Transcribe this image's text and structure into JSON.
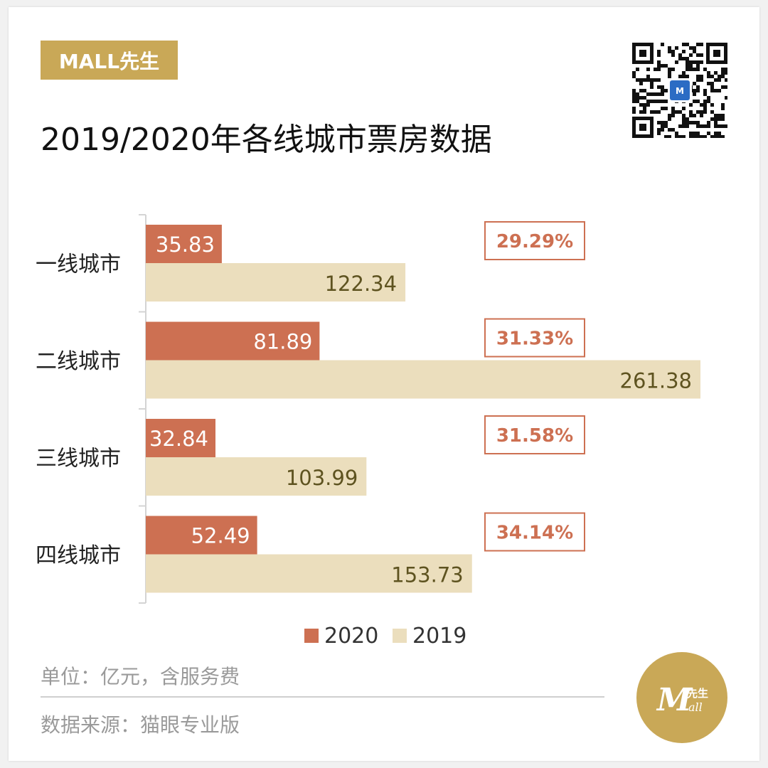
{
  "badge": "MALL先生",
  "title": "2019/2020年各线城市票房数据",
  "colors": {
    "series_2020": "#cd7052",
    "series_2019": "#ebdebd",
    "label_2019": "#5e5320",
    "label_2020": "#ffffff",
    "ratio": "#cd7052",
    "accent": "#c9a857"
  },
  "chart_data": {
    "type": "bar",
    "orientation": "horizontal",
    "categories": [
      "一线城市",
      "二线城市",
      "三线城市",
      "四线城市"
    ],
    "series": [
      {
        "name": "2020",
        "values": [
          35.83,
          81.89,
          32.84,
          52.49
        ]
      },
      {
        "name": "2019",
        "values": [
          122.34,
          261.38,
          103.99,
          153.73
        ]
      }
    ],
    "value_labels": {
      "2020": [
        "35.83",
        "81.89",
        "32.84",
        "52.49"
      ],
      "2019": [
        "122.34",
        "261.38",
        "103.99",
        "153.73"
      ]
    },
    "ratio_labels": [
      "29.29%",
      "31.33%",
      "31.58%",
      "34.14%"
    ],
    "xlim": [
      0,
      261.38
    ],
    "legend": "bottom-center",
    "grid": false
  },
  "notes": {
    "unit": "单位：亿元，含服务费",
    "source": "数据来源：猫眼专业版"
  },
  "logo": {
    "main": "M",
    "sub": "先生",
    "script": "all"
  }
}
